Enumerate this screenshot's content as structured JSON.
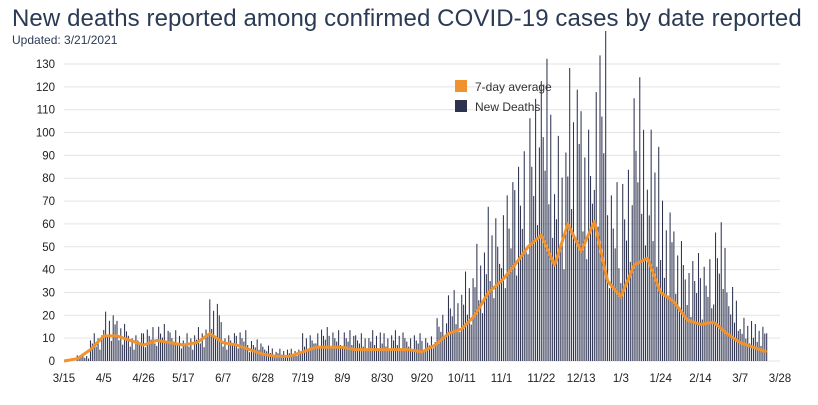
{
  "title": "New deaths reported among confirmed COVID-19 cases by date reported",
  "subtitle": "Updated: 3/21/2021",
  "colors": {
    "bars": "#2d3250",
    "average": "#f0922e",
    "grid": "#e3e3e3",
    "title": "#2b3a55"
  },
  "chart_data": {
    "type": "bar",
    "title": "New deaths reported among confirmed COVID-19 cases by date reported",
    "xlabel": "",
    "ylabel": "",
    "ylim": [
      0,
      130
    ],
    "yticks": [
      0,
      10,
      20,
      30,
      40,
      50,
      60,
      70,
      80,
      90,
      100,
      110,
      120,
      130
    ],
    "xticks": [
      "3/15",
      "4/5",
      "4/26",
      "5/17",
      "6/7",
      "6/28",
      "7/19",
      "8/9",
      "8/30",
      "9/20",
      "10/11",
      "11/1",
      "11/22",
      "12/13",
      "1/3",
      "1/24",
      "2/14",
      "3/7",
      "3/28"
    ],
    "grid": true,
    "legend_position": "top-right",
    "series": [
      {
        "name": "7-day average",
        "type": "line",
        "points": [
          [
            "3/15",
            0
          ],
          [
            "3/22",
            1
          ],
          [
            "3/29",
            5
          ],
          [
            "4/5",
            11
          ],
          [
            "4/12",
            11
          ],
          [
            "4/19",
            9
          ],
          [
            "4/26",
            7
          ],
          [
            "5/3",
            9
          ],
          [
            "5/10",
            8
          ],
          [
            "5/17",
            7
          ],
          [
            "5/24",
            8
          ],
          [
            "5/31",
            12
          ],
          [
            "6/7",
            8
          ],
          [
            "6/14",
            7
          ],
          [
            "6/21",
            5
          ],
          [
            "6/28",
            3
          ],
          [
            "7/5",
            2
          ],
          [
            "7/12",
            2
          ],
          [
            "7/19",
            4
          ],
          [
            "7/26",
            6
          ],
          [
            "8/2",
            6
          ],
          [
            "8/9",
            6
          ],
          [
            "8/16",
            5
          ],
          [
            "8/23",
            5
          ],
          [
            "8/30",
            5
          ],
          [
            "9/6",
            5
          ],
          [
            "9/13",
            5
          ],
          [
            "9/20",
            4
          ],
          [
            "9/27",
            7
          ],
          [
            "10/4",
            12
          ],
          [
            "10/11",
            14
          ],
          [
            "10/18",
            20
          ],
          [
            "10/25",
            30
          ],
          [
            "11/1",
            35
          ],
          [
            "11/8",
            42
          ],
          [
            "11/15",
            50
          ],
          [
            "11/22",
            55
          ],
          [
            "11/29",
            42
          ],
          [
            "12/6",
            60
          ],
          [
            "12/13",
            48
          ],
          [
            "12/20",
            61
          ],
          [
            "12/27",
            35
          ],
          [
            "1/3",
            28
          ],
          [
            "1/10",
            42
          ],
          [
            "1/17",
            45
          ],
          [
            "1/24",
            30
          ],
          [
            "1/31",
            26
          ],
          [
            "2/7",
            18
          ],
          [
            "2/14",
            16
          ],
          [
            "2/21",
            17
          ],
          [
            "2/28",
            12
          ],
          [
            "3/7",
            8
          ],
          [
            "3/14",
            6
          ],
          [
            "3/21",
            4
          ]
        ]
      },
      {
        "name": "New Deaths",
        "type": "bar",
        "weekly_values": [
          [
            "3/15",
            0
          ],
          [
            "3/22",
            2
          ],
          [
            "3/29",
            9
          ],
          [
            "4/5",
            16
          ],
          [
            "4/12",
            13
          ],
          [
            "4/19",
            9
          ],
          [
            "4/26",
            11
          ],
          [
            "5/3",
            12
          ],
          [
            "5/10",
            10
          ],
          [
            "5/17",
            9
          ],
          [
            "5/24",
            11
          ],
          [
            "5/31",
            20
          ],
          [
            "6/7",
            9
          ],
          [
            "6/14",
            10
          ],
          [
            "6/21",
            7
          ],
          [
            "6/28",
            5
          ],
          [
            "7/5",
            4
          ],
          [
            "7/12",
            4
          ],
          [
            "7/19",
            9
          ],
          [
            "7/26",
            11
          ],
          [
            "8/2",
            10
          ],
          [
            "8/9",
            10
          ],
          [
            "8/16",
            9
          ],
          [
            "8/23",
            10
          ],
          [
            "8/30",
            9
          ],
          [
            "9/6",
            10
          ],
          [
            "9/13",
            9
          ],
          [
            "9/20",
            8
          ],
          [
            "9/27",
            15
          ],
          [
            "10/4",
            23
          ],
          [
            "10/11",
            29
          ],
          [
            "10/18",
            38
          ],
          [
            "10/25",
            50
          ],
          [
            "11/1",
            58
          ],
          [
            "11/8",
            68
          ],
          [
            "11/15",
            85
          ],
          [
            "11/22",
            98
          ],
          [
            "11/29",
            73
          ],
          [
            "12/6",
            95
          ],
          [
            "12/13",
            81
          ],
          [
            "12/20",
            107
          ],
          [
            "12/27",
            58
          ],
          [
            "1/3",
            62
          ],
          [
            "1/10",
            92
          ],
          [
            "1/17",
            75
          ],
          [
            "1/24",
            52
          ],
          [
            "1/31",
            42
          ],
          [
            "2/7",
            35
          ],
          [
            "2/14",
            33
          ],
          [
            "2/21",
            45
          ],
          [
            "2/28",
            24
          ],
          [
            "3/7",
            14
          ],
          [
            "3/14",
            12
          ],
          [
            "3/21",
            9
          ]
        ]
      }
    ]
  }
}
